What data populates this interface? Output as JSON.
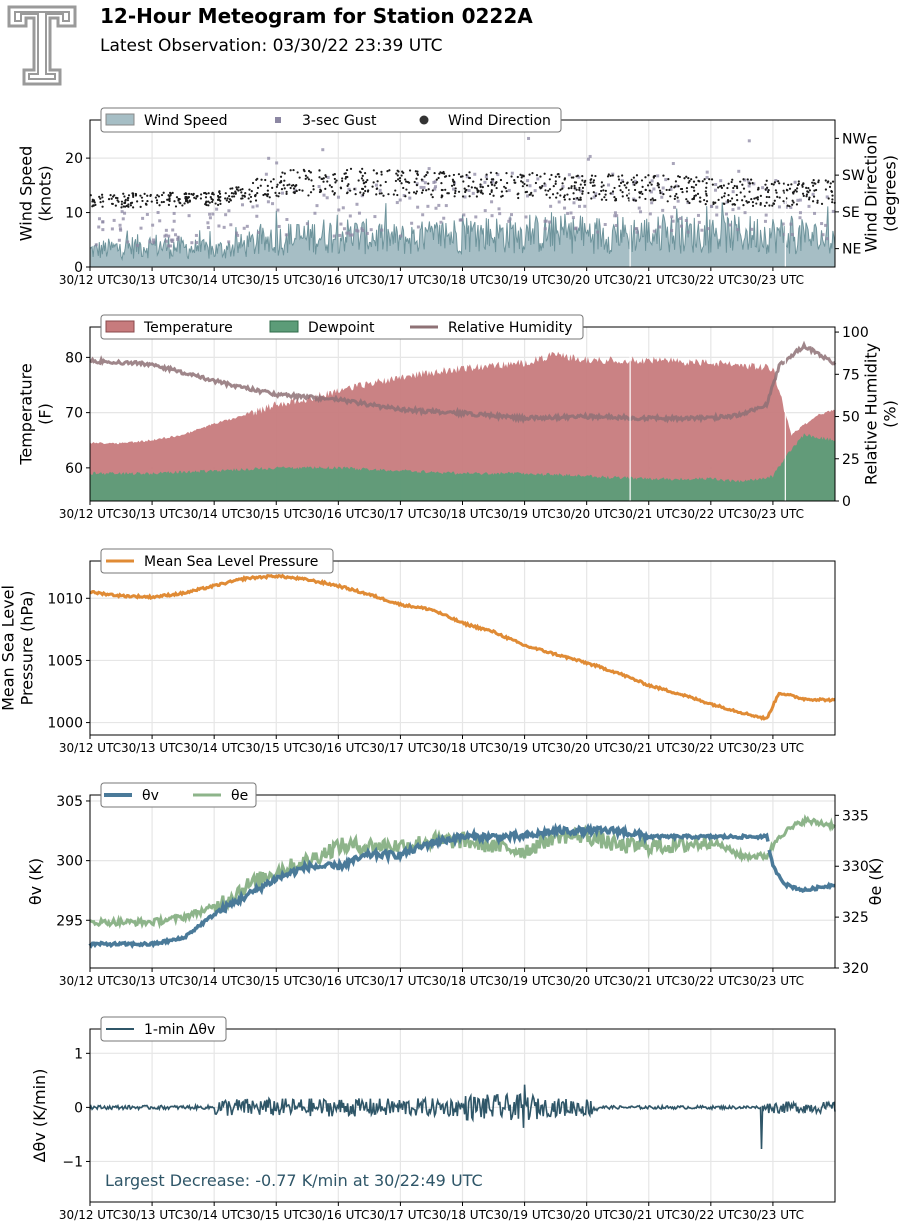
{
  "header": {
    "title": "12-Hour Meteogram for Station 0222A",
    "subtitle": "Latest Observation: 03/30/22 23:39 UTC",
    "logo_name": "texas-tech-double-t-logo"
  },
  "time_ticks": [
    "30/12 UTC",
    "30/13 UTC",
    "30/14 UTC",
    "30/15 UTC",
    "30/16 UTC",
    "30/17 UTC",
    "30/18 UTC",
    "30/19 UTC",
    "30/20 UTC",
    "30/21 UTC",
    "30/22 UTC",
    "30/23 UTC"
  ],
  "colors": {
    "wind_speed": "#a6bec5",
    "wind_speed_line": "#6e949c",
    "gust": "#8c87a3",
    "wind_dir": "#1a1a1a",
    "temperature": "#c77b7d",
    "dewpoint": "#5c9c78",
    "rh": "#8e7175",
    "mslp": "#e08b35",
    "theta_v": "#4a7a99",
    "theta_e": "#8db48a",
    "dtheta": "#2f5668",
    "annotation": "#2f5668"
  },
  "chart_data": [
    {
      "id": "wind",
      "type": "area",
      "xlabel": "",
      "ylabel": "Wind Speed\n(knots)",
      "ylabel2": "Wind Direction\n(degrees)",
      "ylim": [
        0,
        27
      ],
      "yticks": [
        "0",
        "10",
        "20"
      ],
      "yticks_values": [
        0,
        10,
        20
      ],
      "y2ticks": [
        "NE",
        "SE",
        "SW",
        "NW"
      ],
      "y2ticks_values": [
        45,
        135,
        225,
        315
      ],
      "y2lim": [
        0,
        360
      ],
      "legend": [
        "Wind Speed",
        "3-sec Gust",
        "Wind Direction"
      ],
      "legend_placement": "top-left",
      "grid": true,
      "series": [
        {
          "name": "Wind Speed",
          "x": [
            0,
            1,
            2,
            3,
            4,
            5,
            6,
            7,
            8,
            9,
            10,
            11,
            12
          ],
          "values": [
            3,
            4,
            3,
            5,
            6,
            5,
            6,
            6,
            6,
            6,
            6,
            6,
            5
          ]
        },
        {
          "name": "3-sec Gust",
          "x": [
            0,
            1,
            2,
            3,
            4,
            5,
            6,
            7,
            8,
            9,
            10,
            11,
            12
          ],
          "values": [
            7,
            8,
            7,
            10,
            11,
            11,
            12,
            13,
            13,
            12,
            12,
            12,
            10
          ]
        },
        {
          "name": "Wind Direction",
          "x": [
            0,
            1,
            2,
            3,
            4,
            5,
            6,
            7,
            8,
            9,
            10,
            11,
            12
          ],
          "values": [
            160,
            165,
            165,
            205,
            210,
            205,
            200,
            200,
            195,
            195,
            185,
            180,
            185
          ]
        }
      ]
    },
    {
      "id": "temp",
      "type": "area",
      "ylabel": "Temperature\n(F)",
      "ylabel2": "Relative Humidity\n(%)",
      "ylim": [
        54,
        85.5
      ],
      "yticks": [
        "60",
        "70",
        "80"
      ],
      "yticks_values": [
        60,
        70,
        80
      ],
      "y2lim": [
        0,
        103
      ],
      "y2ticks": [
        "0",
        "25",
        "50",
        "75",
        "100"
      ],
      "y2ticks_values": [
        0,
        25,
        50,
        75,
        100
      ],
      "legend": [
        "Temperature",
        "Dewpoint",
        "Relative Humidity"
      ],
      "legend_placement": "top-left",
      "grid": true,
      "series": [
        {
          "name": "Temperature",
          "x": [
            0,
            0.5,
            1,
            1.5,
            2,
            2.5,
            3,
            3.5,
            4,
            5,
            6,
            7,
            7.5,
            8,
            9,
            10,
            10.6,
            11,
            11.3,
            11.7,
            12
          ],
          "values": [
            64.5,
            64.5,
            65,
            66,
            68,
            69.5,
            71.5,
            72.5,
            74,
            76.5,
            78,
            79,
            80.5,
            79.5,
            79.5,
            79,
            78.5,
            78,
            66,
            69.5,
            70.5
          ]
        },
        {
          "name": "Dewpoint",
          "x": [
            0,
            1,
            2,
            3,
            4,
            5,
            6,
            7,
            8,
            9,
            10,
            10.5,
            10.8,
            11,
            11.2,
            11.5,
            12
          ],
          "values": [
            59,
            59,
            59.5,
            60,
            60,
            59.5,
            59,
            59,
            58.5,
            58,
            58,
            57.5,
            58,
            58.5,
            62,
            66,
            65
          ]
        },
        {
          "name": "Relative Humidity",
          "x": [
            0,
            1,
            2,
            3,
            4,
            5,
            6,
            7,
            8,
            9,
            10,
            10.5,
            10.9,
            11.1,
            11.5,
            12
          ],
          "values": [
            83,
            81,
            71,
            63,
            60,
            54,
            52,
            49,
            50,
            49,
            49,
            51,
            57,
            80,
            92,
            81
          ]
        }
      ]
    },
    {
      "id": "mslp",
      "type": "line",
      "ylabel": "Mean Sea Level\nPressure (hPa)",
      "ylim": [
        999,
        1013
      ],
      "yticks": [
        "1000",
        "1005",
        "1010"
      ],
      "yticks_values": [
        1000,
        1005,
        1010
      ],
      "legend": [
        "Mean Sea Level Pressure"
      ],
      "legend_placement": "top-left",
      "grid": true,
      "series": [
        {
          "name": "Mean Sea Level Pressure",
          "x": [
            0,
            0.5,
            1,
            1.5,
            2,
            2.5,
            3,
            3.5,
            4,
            4.5,
            5,
            5.5,
            6,
            6.5,
            7,
            7.5,
            8,
            8.5,
            9,
            9.5,
            10,
            10.5,
            10.9,
            11.1,
            11.5,
            12
          ],
          "values": [
            1010.5,
            1010.2,
            1010.1,
            1010.4,
            1011,
            1011.6,
            1011.8,
            1011.5,
            1011,
            1010.3,
            1009.5,
            1009.1,
            1008,
            1007.3,
            1006.2,
            1005.5,
            1004.8,
            1004,
            1003,
            1002.3,
            1001.5,
            1000.8,
            1000.3,
            1002.4,
            1001.9,
            1001.8
          ]
        }
      ]
    },
    {
      "id": "theta",
      "type": "line",
      "ylabel": "θv (K)",
      "ylabel2": "θe (K)",
      "ylim": [
        291,
        305.5
      ],
      "yticks": [
        "295",
        "300",
        "305"
      ],
      "yticks_values": [
        295,
        300,
        305
      ],
      "y2lim": [
        320,
        337
      ],
      "y2ticks": [
        "320",
        "325",
        "330",
        "335"
      ],
      "y2ticks_values": [
        320,
        325,
        330,
        335
      ],
      "legend": [
        "θv",
        "θe"
      ],
      "legend_placement": "top-left",
      "grid": true,
      "series": [
        {
          "name": "θv",
          "x": [
            0,
            0.5,
            1,
            1.5,
            2,
            2.5,
            3,
            3.5,
            4,
            4.5,
            5,
            5.5,
            6,
            6.5,
            7,
            7.5,
            8,
            8.5,
            9,
            9.5,
            10,
            10.5,
            10.9,
            11,
            11.2,
            11.5,
            12
          ],
          "values": [
            293,
            293,
            293,
            293.5,
            295.5,
            297,
            298.5,
            299.5,
            299.5,
            300.5,
            300.5,
            301.5,
            302,
            302,
            302,
            302.5,
            302.5,
            302.5,
            302,
            302,
            302,
            302,
            302,
            299.5,
            298,
            297.5,
            298
          ]
        },
        {
          "name": "θe",
          "x": [
            0,
            0.5,
            1,
            1.5,
            2,
            2.5,
            3,
            3.5,
            4,
            4.5,
            5,
            5.5,
            6,
            6.5,
            7,
            7.5,
            8,
            8.5,
            9,
            9.5,
            10,
            10.5,
            10.9,
            11.1,
            11.5,
            12
          ],
          "values": [
            324.5,
            324.5,
            324.5,
            325,
            326,
            328,
            329.5,
            330.5,
            332,
            332,
            332,
            332.5,
            332.5,
            332,
            331.5,
            333,
            333,
            332,
            332,
            332,
            332.5,
            331,
            331,
            333,
            334.5,
            334
          ]
        }
      ]
    },
    {
      "id": "dtheta",
      "type": "line",
      "ylabel": "Δθv (K/min)",
      "ylim": [
        -1.75,
        1.45
      ],
      "yticks": [
        "−1",
        "0",
        "1"
      ],
      "yticks_values": [
        -1,
        0,
        1
      ],
      "legend": [
        "1-min Δθv"
      ],
      "legend_placement": "top-left",
      "grid": true,
      "annotation": "Largest Decrease: -0.77 K/min at 30/22:49 UTC",
      "series": [
        {
          "name": "1-min Δθv",
          "x": [
            0,
            1,
            2,
            3,
            4,
            5,
            6,
            7,
            8,
            9,
            10,
            10.82,
            11,
            12
          ],
          "values": [
            0,
            0.05,
            0.1,
            0.1,
            0.1,
            0.1,
            0.1,
            0.15,
            0,
            0,
            0,
            -0.77,
            -0.1,
            0.05
          ]
        }
      ]
    }
  ]
}
